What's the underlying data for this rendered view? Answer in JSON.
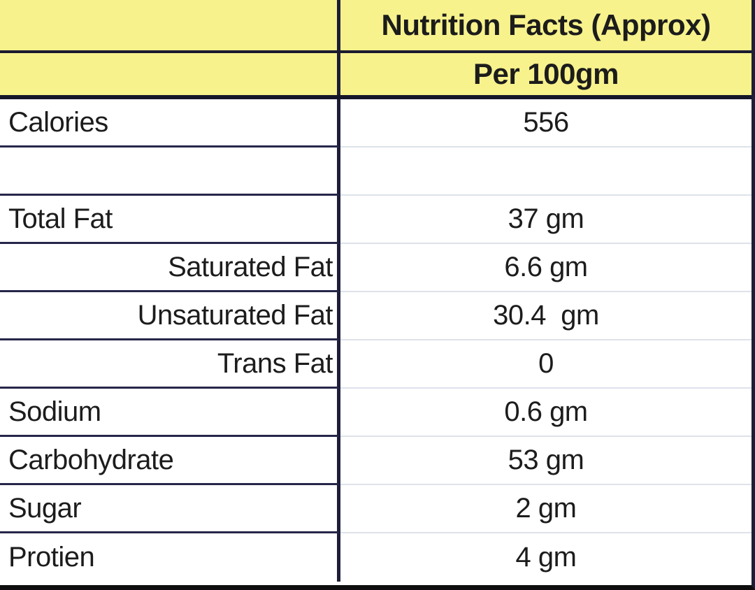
{
  "header": {
    "title": "Nutrition Facts (Approx)",
    "subtitle": "Per 100gm"
  },
  "colors": {
    "header_bg": "#f7f28c",
    "border_dark": "#1e1e38",
    "border_light": "#dde2ea",
    "bottom_border": "#0e0e0e",
    "text": "#1c1c1c"
  },
  "rows": [
    {
      "label": "Calories",
      "value": "556"
    },
    {
      "label": "",
      "value": ""
    },
    {
      "label": "Total Fat",
      "value": "37 gm"
    },
    {
      "label": "Saturated Fat",
      "value": "6.6 gm"
    },
    {
      "label": "Unsaturated Fat",
      "value": "30.4  gm"
    },
    {
      "label": "Trans Fat",
      "value": "0"
    },
    {
      "label": "Sodium",
      "value": "0.6 gm"
    },
    {
      "label": "Carbohydrate",
      "value": "53 gm"
    },
    {
      "label": "Sugar",
      "value": "2 gm"
    },
    {
      "label": "Protien",
      "value": "4 gm"
    }
  ]
}
